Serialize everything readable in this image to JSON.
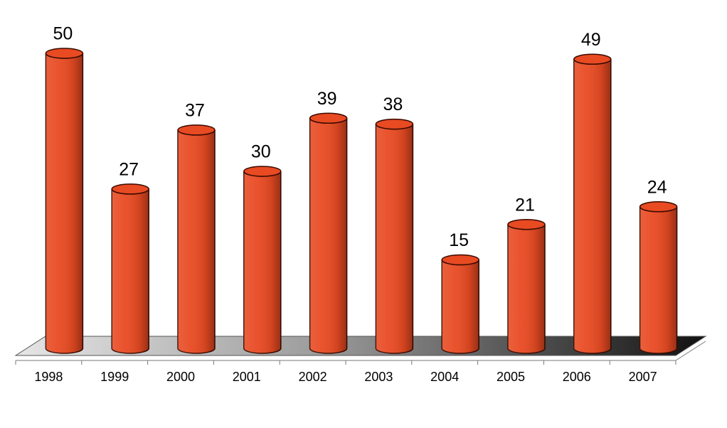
{
  "chart_data": {
    "type": "bar",
    "categories": [
      "1998",
      "1999",
      "2000",
      "2001",
      "2002",
      "2003",
      "2004",
      "2005",
      "2006",
      "2007"
    ],
    "values": [
      50,
      27,
      37,
      30,
      39,
      38,
      15,
      21,
      49,
      24
    ],
    "color": "#e84a22"
  }
}
